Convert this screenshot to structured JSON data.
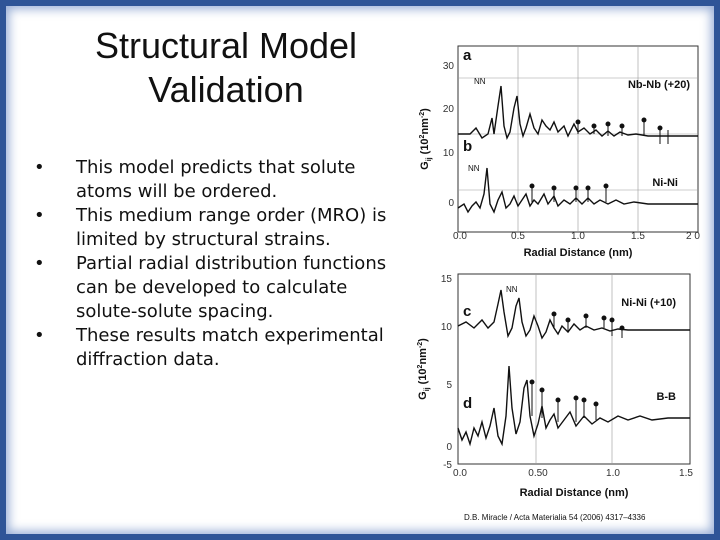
{
  "slide": {
    "title_line1": "Structural Model",
    "title_line2": "Validation",
    "bullets": [
      "This model predicts that solute atoms will be ordered.",
      "This medium range order (MRO) is limited  by structural strains.",
      "Partial radial distribution functions can be developed to calculate solute-solute spacing.",
      "These results match experimental diffraction data."
    ],
    "bullet_symbol": "•",
    "citation": "D.B. Miracle / Acta Materialia 54 (2006) 4317–4336"
  },
  "figure_top": {
    "ylabel": "G",
    "ylabel_sub": "ij",
    "ylabel_unit": "(10",
    "ylabel_exp": "2",
    "ylabel_unit2": "nm",
    "ylabel_exp2": "-2",
    "ylabel_close": ")",
    "xlabel": "Radial Distance (nm)",
    "yticks": [
      "30",
      "20",
      "10",
      "0"
    ],
    "xticks": [
      "0.0",
      "0.5",
      "1.0",
      "1.5",
      "2 0"
    ],
    "panel_a_label": "a",
    "panel_b_label": "b",
    "curve_a_name": "Nb-Nb (+20)",
    "curve_b_name": "Ni-Ni",
    "nn_a": "NN",
    "nn_b": "NN"
  },
  "figure_bottom": {
    "ylabel": "G",
    "ylabel_sub": "ij",
    "ylabel_unit": "(10",
    "ylabel_exp": "2",
    "ylabel_unit2": "nm",
    "ylabel_exp2": "-2",
    "ylabel_close": ")",
    "xlabel": "Radial Distance (nm)",
    "yticks": [
      "15",
      "10",
      "5",
      "0",
      "-5"
    ],
    "xticks": [
      "0.0",
      "0.50",
      "1.0",
      "1.5"
    ],
    "panel_c_label": "c",
    "panel_d_label": "d",
    "curve_c_name": "Ni-Ni (+10)",
    "curve_d_name": "B-B",
    "nn_c": "NN"
  }
}
